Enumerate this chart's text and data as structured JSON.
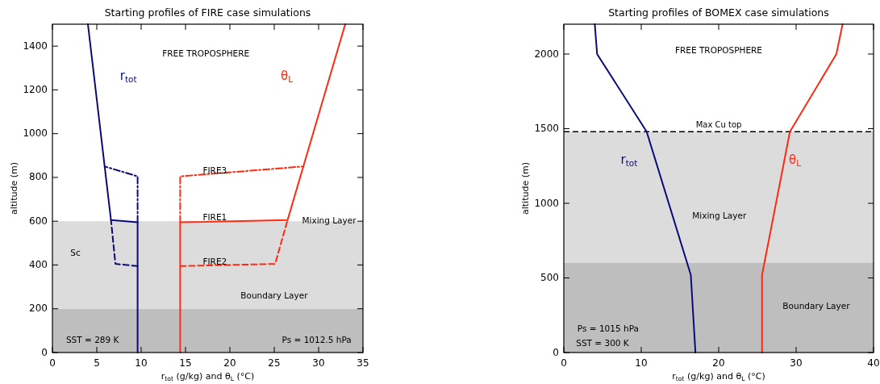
{
  "chart_data": [
    {
      "type": "line",
      "title": "Starting profiles of FIRE case simulations",
      "xlabel": "r$_{tot}$ (g/kg) and θ$_{L}$ (°C)",
      "ylabel": "altitude (m)",
      "xlim": [
        0,
        35
      ],
      "ylim": [
        0,
        1500
      ],
      "xticks": [
        0,
        5,
        10,
        15,
        20,
        25,
        30,
        35
      ],
      "yticks": [
        0,
        200,
        400,
        600,
        800,
        1000,
        1200,
        1400
      ],
      "grid": false,
      "bands": [
        {
          "axis": "y",
          "from": 0,
          "to": 200,
          "color": "#bebebe"
        },
        {
          "axis": "y",
          "from": 200,
          "to": 600,
          "color": "#dcdcdc"
        }
      ],
      "series": [
        {
          "name": "r$_{tot}$",
          "color": "#0a0a78",
          "line_style": "solid",
          "x": [
            9.6,
            9.6,
            6.6,
            4
          ],
          "values": [
            0,
            595,
            605,
            1500
          ]
        },
        {
          "color": "#0a0a78",
          "line_style": "dashdot",
          "x": [
            9.6,
            9.6,
            5.9
          ],
          "values": [
            595,
            805,
            850
          ]
        },
        {
          "color": "#0a0a78",
          "line_style": "dashed",
          "x": [
            9.6,
            7.1,
            6.6
          ],
          "values": [
            395,
            405,
            605
          ]
        },
        {
          "name": "θ$_{L}$",
          "color": "#ff2a10",
          "line_style": "solid",
          "x": [
            14.4,
            14.4,
            26.5,
            33
          ],
          "values": [
            0,
            595,
            605,
            1500
          ]
        },
        {
          "color": "#ff2a10",
          "line_style": "dashdot",
          "x": [
            14.4,
            14.4,
            28.2
          ],
          "values": [
            595,
            805,
            850
          ]
        },
        {
          "color": "#ff2a10",
          "line_style": "dashed",
          "x": [
            14.4,
            25.1,
            26.5
          ],
          "values": [
            395,
            405,
            605
          ]
        }
      ],
      "annotations": [
        {
          "text": "FIRE3",
          "y": 830
        },
        {
          "text": "FIRE1",
          "y": 615
        },
        {
          "text": "FIRE2",
          "y": 412
        },
        {
          "text": "Mixing Layer",
          "y": 600
        },
        "FREE TROPOSPHERE",
        "Sc",
        "Boundary Layer",
        "SST = 289 K",
        "Ps = 1012.5 hPa"
      ]
    },
    {
      "type": "line",
      "title": "Starting profiles of BOMEX case simulations",
      "xlabel": "r$_{tot}$ (g/kg) and θ$_{L}$ (°C)",
      "ylabel": "altitude (m)",
      "xlim": [
        0,
        40
      ],
      "ylim": [
        0,
        2200
      ],
      "xticks": [
        0,
        10,
        20,
        30,
        40
      ],
      "yticks": [
        0,
        500,
        1000,
        1500,
        2000
      ],
      "grid": false,
      "bands": [
        {
          "axis": "y",
          "from": 0,
          "to": 600,
          "color": "#bebebe"
        },
        {
          "axis": "y",
          "from": 600,
          "to": 1480,
          "color": "#dcdcdc"
        }
      ],
      "ref_lines": [
        {
          "axis": "y",
          "value": 1480,
          "label": "Max Cu top",
          "color": "#000000",
          "line_style": "dashed"
        }
      ],
      "series": [
        {
          "name": "r$_{tot}$",
          "color": "#0a0a78",
          "line_style": "solid",
          "x": [
            17,
            16.4,
            10.7,
            4.3,
            4
          ],
          "values": [
            0,
            520,
            1480,
            2000,
            2200
          ]
        },
        {
          "name": "θ$_{L}$",
          "color": "#ff2a10",
          "line_style": "solid",
          "x": [
            25.6,
            25.6,
            29.2,
            35.2,
            36
          ],
          "values": [
            0,
            520,
            1480,
            2000,
            2200
          ]
        }
      ],
      "annotations": [
        "FREE TROPOSPHERE",
        "Mixing Layer",
        "Boundary Layer",
        "Ps = 1015 hPa",
        "SST = 300 K"
      ]
    }
  ]
}
